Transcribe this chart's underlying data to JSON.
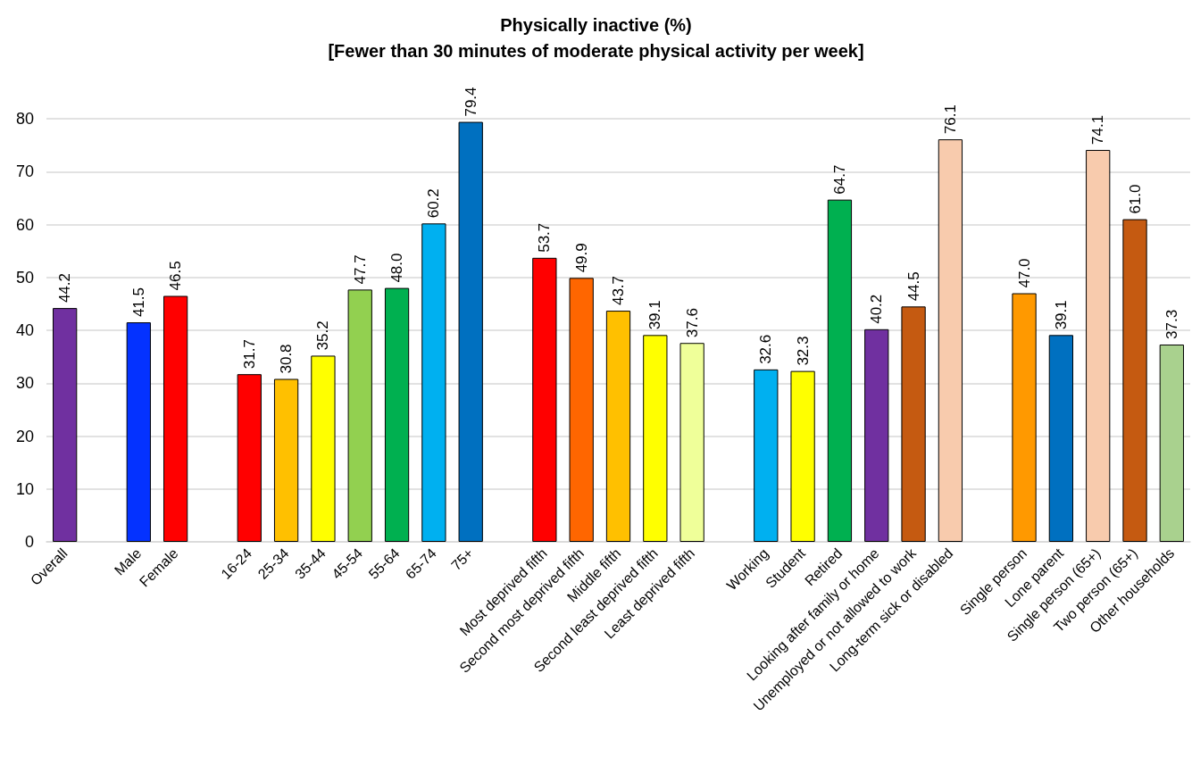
{
  "chart_data": {
    "type": "bar",
    "title": "Physically inactive (%)\n[Fewer than 30 minutes of moderate physical activity per week]",
    "categories": [
      "Overall",
      null,
      "Male",
      "Female",
      null,
      "16-24",
      "25-34",
      "35-44",
      "45-54",
      "55-64",
      "65-74",
      "75+",
      null,
      "Most deprived fifth",
      "Second most deprived fifth",
      "Middle fifth",
      "Second least deprived fifth",
      "Least deprived fifth",
      null,
      "Working",
      "Student",
      "Retired",
      "Looking after family or home",
      "Unemployed or not allowed to work",
      "Long-term sick or disabled",
      null,
      "Single person",
      "Lone parent",
      "Single person (65+)",
      "Two person (65+)",
      "Other households"
    ],
    "values": [
      44.2,
      null,
      41.5,
      46.5,
      null,
      31.7,
      30.8,
      35.2,
      47.7,
      48.0,
      60.2,
      79.4,
      null,
      53.7,
      49.9,
      43.7,
      39.1,
      37.6,
      null,
      32.6,
      32.3,
      64.7,
      40.2,
      44.5,
      76.1,
      null,
      47.0,
      39.1,
      74.1,
      61.0,
      37.3
    ],
    "value_labels": [
      "44.2",
      null,
      "41.5",
      "46.5",
      null,
      "31.7",
      "30.8",
      "35.2",
      "47.7",
      "48.0",
      "60.2",
      "79.4",
      null,
      "53.7",
      "49.9",
      "43.7",
      "39.1",
      "37.6",
      null,
      "32.6",
      "32.3",
      "64.7",
      "40.2",
      "44.5",
      "76.1",
      null,
      "47.0",
      "39.1",
      "74.1",
      "61.0",
      "37.3"
    ],
    "colors": [
      "#7030a0",
      null,
      "#0432ff",
      "#ff0000",
      null,
      "#ff0000",
      "#ffc000",
      "#ffff00",
      "#92d050",
      "#00b050",
      "#00b0f0",
      "#0070c0",
      null,
      "#ff0000",
      "#ff6600",
      "#ffc000",
      "#ffff00",
      "#efff99",
      null,
      "#00b0f0",
      "#ffff00",
      "#00b050",
      "#7030a0",
      "#c55a11",
      "#f8cbad",
      null,
      "#ff9900",
      "#0070c0",
      "#f8cbad",
      "#c55a11",
      "#a9d18e"
    ],
    "ylim": [
      0,
      80
    ],
    "yticks": [
      0,
      10,
      20,
      30,
      40,
      50,
      60,
      70,
      80
    ],
    "grid": "y"
  }
}
